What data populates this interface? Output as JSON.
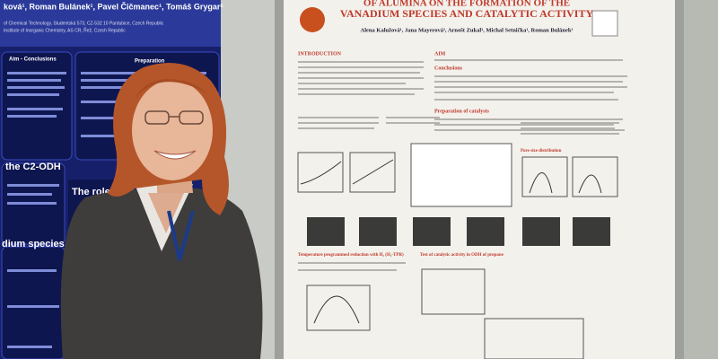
{
  "left_poster": {
    "authors": "ková¹, Roman Bulánek¹, Pavel Čičmanec¹, Tomáš Grygar²",
    "affiliations": [
      "of Chemical Technology, Studentská 573, CZ-532 10 Pardubice, Czech Republic",
      "Institute of Inorganic Chemistry, AS CR, Řež, Czech Republic"
    ],
    "sections": [
      "Aim - Conclusions",
      "Preparation",
      "the C2-ODH",
      "The role of Si",
      "dium species"
    ]
  },
  "right_poster": {
    "title": [
      "OF ALUMINA ON THE FORMATION OF THE",
      "VANADIUM SPECIES AND CATALYTIC ACTIVITY"
    ],
    "authors": "Alena Kalužová¹, Jana Mayerová², Arnošt Zukal³, Michal Setnička¹, Roman Bulánek¹",
    "sections": [
      "INTRODUCTION",
      "AIM",
      "Conclusions",
      "Preparation of catalysts",
      "Pore size distribution",
      "Temperature programmed reduction with H₂ (H₂-TPR)",
      "Test of catalytic activity in ODH of propane"
    ]
  }
}
